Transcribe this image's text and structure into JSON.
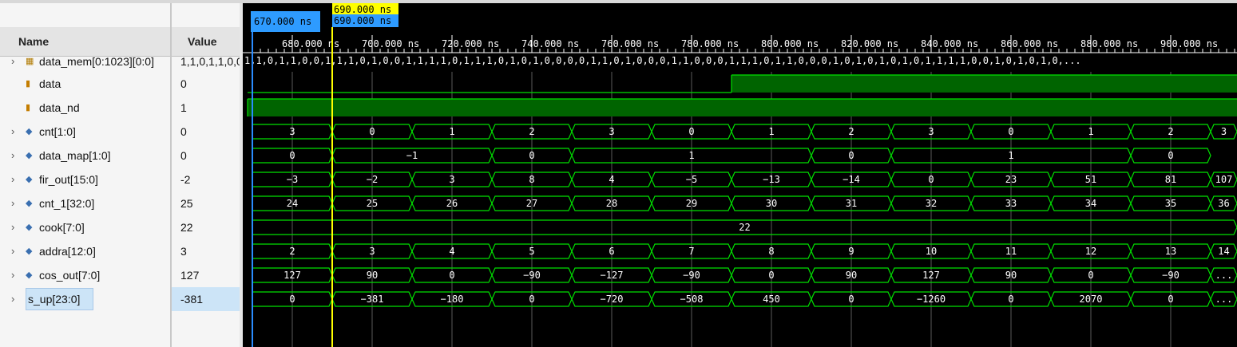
{
  "columns": {
    "name": "Name",
    "value": "Value"
  },
  "cursors": {
    "blue_label": "670.000 ns",
    "yellow_label": "690.000 ns",
    "yellow_label_repeat": "690.000 ns"
  },
  "ruler": [
    "680.000 ns",
    "700.000 ns",
    "720.000 ns",
    "740.000 ns",
    "760.000 ns",
    "780.000 ns",
    "800.000 ns",
    "820.000 ns",
    "840.000 ns",
    "860.000 ns",
    "880.000 ns",
    "900.000 ns"
  ],
  "colors": {
    "wave": "#00e000",
    "high_fill": "#006400",
    "blue_cursor": "#2a8cff",
    "yellow_cursor": "#ffff00",
    "selected_row": "#cce4f7"
  },
  "mem_row": {
    "name": "data_mem[0:1023][0:0]",
    "value": "1,1,0,1,1,0,0,",
    "wave_text": "1,1,0,1,1,0,0,1,1,1,0,1,0,0,1,1,1,1,0,1,1,1,0,1,0,1,0,0,0,0,1,1,0,1,0,0,0,1,1,0,0,0,1,1,1,0,1,1,0,0,0,1,0,1,0,1,0,1,0,1,1,1,1,0,0,1,0,1,0,1,0,..."
  },
  "signals": [
    {
      "id": "data",
      "name": "data",
      "value": "0",
      "kind": "bit",
      "icon": "scalar-signal-icon",
      "segments": [
        [
          0,
          "low"
        ],
        [
          612,
          "high"
        ]
      ]
    },
    {
      "id": "data_nd",
      "name": "data_nd",
      "value": "1",
      "kind": "bit",
      "icon": "scalar-signal-icon",
      "segments": [
        [
          0,
          "high"
        ]
      ]
    },
    {
      "id": "cnt",
      "name": "cnt[1:0]",
      "value": "0",
      "kind": "bus",
      "icon": "bus-signal-icon",
      "labels": [
        "3",
        "0",
        "1",
        "2",
        "3",
        "0",
        "1",
        "2",
        "3",
        "0",
        "1",
        "2",
        "3"
      ]
    },
    {
      "id": "data_map",
      "name": "data_map[1:0]",
      "value": "0",
      "kind": "bus",
      "icon": "bus-signal-icon",
      "labels": [
        "0",
        "−1",
        "0",
        "1",
        "0",
        "1",
        "0"
      ]
    },
    {
      "id": "fir_out",
      "name": "fir_out[15:0]",
      "value": "-2",
      "kind": "bus",
      "icon": "bus-signal-icon",
      "labels": [
        "−3",
        "−2",
        "3",
        "8",
        "4",
        "−5",
        "−13",
        "−14",
        "0",
        "23",
        "51",
        "81",
        "107"
      ]
    },
    {
      "id": "cnt_1",
      "name": "cnt_1[32:0]",
      "value": "25",
      "kind": "bus",
      "icon": "bus-signal-icon",
      "labels": [
        "24",
        "25",
        "26",
        "27",
        "28",
        "29",
        "30",
        "31",
        "32",
        "33",
        "34",
        "35",
        "36"
      ]
    },
    {
      "id": "cook",
      "name": "cook[7:0]",
      "value": "22",
      "kind": "bus",
      "icon": "bus-signal-icon",
      "labels": [
        "22"
      ]
    },
    {
      "id": "addra",
      "name": "addra[12:0]",
      "value": "3",
      "kind": "bus",
      "icon": "bus-signal-icon",
      "labels": [
        "2",
        "3",
        "4",
        "5",
        "6",
        "7",
        "8",
        "9",
        "10",
        "11",
        "12",
        "13",
        "14"
      ]
    },
    {
      "id": "cos_out",
      "name": "cos_out[7:0]",
      "value": "127",
      "kind": "bus",
      "icon": "bus-signal-icon",
      "labels": [
        "127",
        "90",
        "0",
        "−90",
        "−127",
        "−90",
        "0",
        "90",
        "127",
        "90",
        "0",
        "−90",
        "..."
      ]
    },
    {
      "id": "s_up",
      "name": "s_up[23:0]",
      "value": "-381",
      "kind": "bus",
      "icon": "bus-signal-icon",
      "selected": true,
      "labels": [
        "0",
        "−381",
        "−180",
        "0",
        "−720",
        "−508",
        "450",
        "0",
        "−1260",
        "0",
        "2070",
        "0",
        "..."
      ]
    }
  ]
}
